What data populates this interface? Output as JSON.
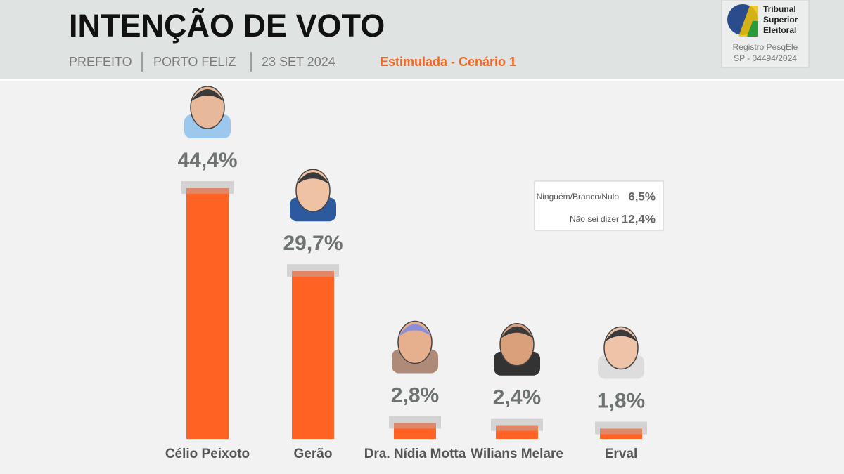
{
  "header": {
    "title": "INTENÇÃO DE VOTO",
    "office": "PREFEITO",
    "city": "PORTO FELIZ",
    "date": "23 SET 2024",
    "scenario": "Estimulada - Cenário 1"
  },
  "registry": {
    "institution": [
      "Tribunal",
      "Superior",
      "Eleitoral"
    ],
    "label": "Registro PesqEle",
    "code": "SP - 04494/2024"
  },
  "chart_data": {
    "type": "bar",
    "categories": [
      "Célio Peixoto",
      "Gerão",
      "Dra. Nídia Motta",
      "Wilians Melare",
      "Erval"
    ],
    "values": [
      44.4,
      29.7,
      2.8,
      2.4,
      1.8
    ],
    "value_labels": [
      "44,4%",
      "29,7%",
      "2,8%",
      "2,4%",
      "1,8%"
    ],
    "color": "#ff6222"
  },
  "others": {
    "rows": [
      {
        "label": "Ninguém/Branco/Nulo",
        "value": 6.5,
        "value_label": "6,5%"
      },
      {
        "label": "Não sei dizer",
        "value": 12.4,
        "value_label": "12,4%"
      }
    ]
  }
}
